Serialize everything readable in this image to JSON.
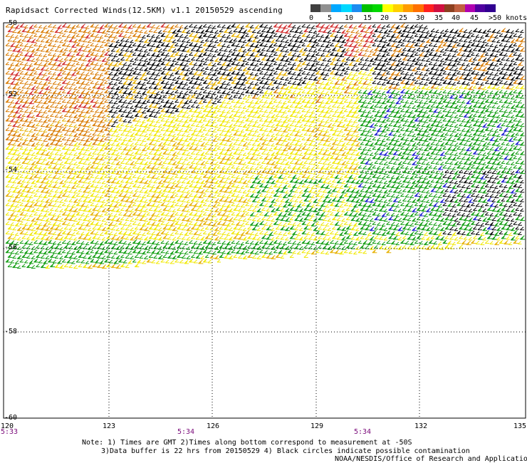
{
  "title": "Rapidsact Corrected Winds(12.5KM) v1.1 20150529 ascending",
  "legend": {
    "colors": [
      "#404040",
      "#909090",
      "#00a8ff",
      "#00d8ff",
      "#1c8cf0",
      "#00c000",
      "#00d800",
      "#ffff00",
      "#ffd000",
      "#ff9c00",
      "#ff7000",
      "#ff2020",
      "#d01040",
      "#8c4020",
      "#c06040",
      "#b000b0",
      "#5000a0",
      "#300090"
    ],
    "labels": [
      "0",
      "5",
      "10",
      "15",
      "20",
      "25",
      "30",
      "35",
      "40",
      "45",
      ">50 knots"
    ]
  },
  "axes": {
    "lat_labels": [
      "-50",
      "-52",
      "-54",
      "-56",
      "-58",
      "-60"
    ],
    "lon_labels": [
      "120",
      "123",
      "126",
      "129",
      "132",
      "135"
    ],
    "time_labels": [
      "5:33",
      "5:34",
      "5:34"
    ]
  },
  "notes": [
    "Note: 1) Times are GMT 2)Times along bottom correspond to measurement at -50S",
    "3)Data buffer is 22 hrs from 20150529 4) Black circles indicate possible contamination",
    "NOAA/NESDIS/Office of Research and Applications"
  ],
  "colors": {
    "black": "#000000",
    "yellow": "#f0e800",
    "gold": "#e6b000",
    "orange": "#d87a00",
    "red": "#d02a2a",
    "green": "#0a9a0a",
    "blue": "#1a1ad0"
  }
}
